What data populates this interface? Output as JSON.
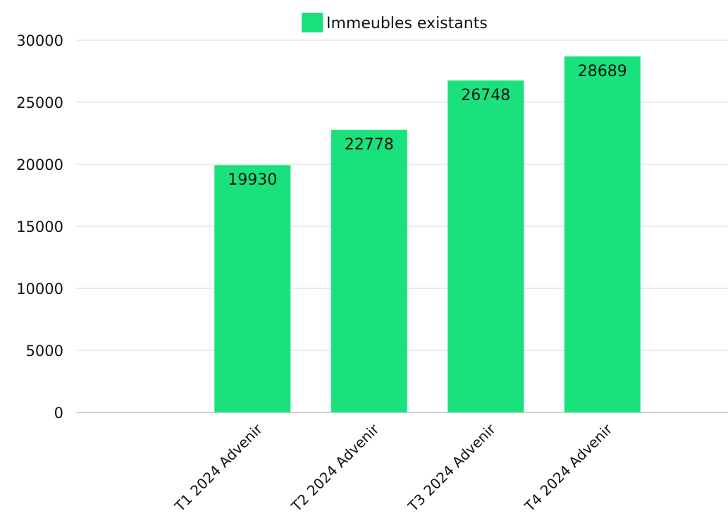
{
  "chart_data": {
    "type": "bar",
    "categories": [
      "T1 2024 Advenir",
      "T2 2024 Advenir",
      "T3 2024 Advenir",
      "T4 2024 Advenir"
    ],
    "series": [
      {
        "name": "Immeubles existants",
        "values": [
          19930,
          22778,
          26748,
          28689
        ],
        "color": "#19E27D"
      }
    ],
    "data_labels": [
      "19930",
      "22778",
      "26748",
      "28689"
    ],
    "yticks": [
      0,
      5000,
      10000,
      15000,
      20000,
      25000,
      30000
    ],
    "ylim": [
      0,
      30000
    ],
    "grid": true,
    "legend_position": "top-center",
    "title": "",
    "xlabel": "",
    "ylabel": ""
  }
}
